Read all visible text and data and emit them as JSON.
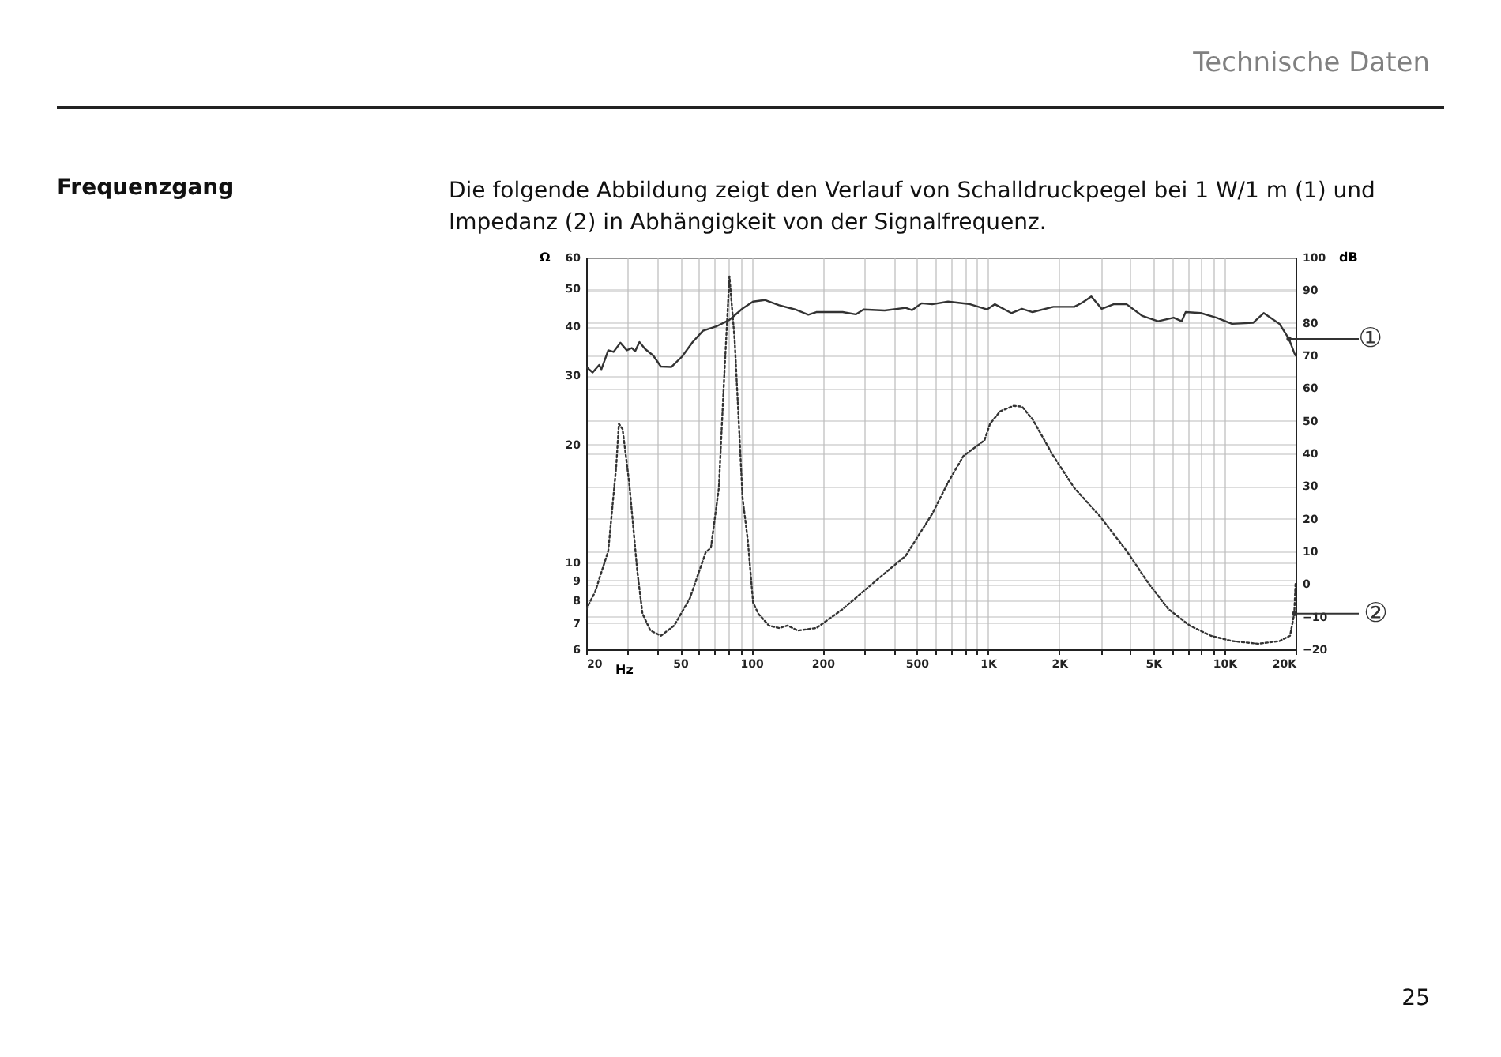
{
  "chart_data": {
    "type": "line",
    "title": "Frequenzgang",
    "subtitle": "Die folgende Abbildung zeigt den Verlauf von Schalldruckpegel bei 1 W/1 m (1) und Impedanz (2) in Abhängigkeit von der Signalfrequenz.",
    "xlabel": "Hz",
    "ylabel": "Ω",
    "y2label": "dB",
    "annotations": [
      "Technische Daten",
      "25",
      {
        "text": "②",
        "x": 19740,
        "y": 7.4
      },
      {
        "text": "①",
        "x": 18740,
        "y": 37.2
      }
    ],
    "log": "xy",
    "grid": true,
    "xlim": [
      20,
      20000
    ],
    "xticks": [
      20,
      {
        "value": 30,
        "label": null
      },
      {
        "value": 40,
        "label": null
      },
      50,
      {
        "value": 60,
        "label": null
      },
      {
        "value": 70,
        "label": null
      },
      {
        "value": 80,
        "label": null
      },
      {
        "value": 90,
        "label": null
      },
      100,
      200,
      {
        "value": 300,
        "label": null
      },
      {
        "value": 400,
        "label": null
      },
      500,
      {
        "value": 600,
        "label": null
      },
      {
        "value": 700,
        "label": null
      },
      {
        "value": 800,
        "label": null
      },
      {
        "value": 900,
        "label": null
      },
      {
        "value": 1000,
        "label": "1K"
      },
      {
        "value": 2000,
        "label": "2K"
      },
      {
        "value": 3000,
        "label": null
      },
      {
        "value": 4000,
        "label": null
      },
      {
        "value": 5000,
        "label": "5K"
      },
      {
        "value": 6000,
        "label": null
      },
      {
        "value": 7000,
        "label": null
      },
      {
        "value": 8000,
        "label": null
      },
      {
        "value": 9000,
        "label": null
      },
      {
        "value": 10000,
        "label": "10K"
      },
      {
        "value": 20000,
        "label": "20K"
      }
    ],
    "ylim": [
      6,
      60
    ],
    "yticks": [
      6,
      7,
      8,
      9,
      10,
      20,
      30,
      40,
      50,
      60
    ],
    "y2lim": [
      -20,
      100
    ],
    "y2ticks": [
      -20,
      -10,
      0,
      10,
      20,
      30,
      40,
      50,
      60,
      70,
      80,
      90,
      100
    ],
    "series": [
      {
        "color": "#333333",
        "line_style": "dotted",
        "x": [
          20,
          21.8,
          24.8,
          26.8,
          27.5,
          28.5,
          30.4,
          32.9,
          34.6,
          37.4,
          41.4,
          47.1,
          54.9,
          64,
          67.4,
          72.8,
          76.7,
          80.7,
          84.9,
          91.7,
          96.5,
          101.6,
          106.9,
          118.5,
          131,
          142,
          157,
          188,
          243,
          330,
          449,
          581,
          678,
          788,
          967,
          1021,
          1126,
          1282,
          1392,
          1544,
          1890,
          2318,
          2980,
          3860,
          4740,
          5800,
          7140,
          8760,
          10760,
          13900,
          17100,
          18950,
          19740,
          20000
        ],
        "values": [
          7.6,
          8.4,
          10.7,
          17.6,
          22.6,
          21.9,
          16,
          9.5,
          7.4,
          6.7,
          6.5,
          6.9,
          8.1,
          10.6,
          10.9,
          15.5,
          29.8,
          53.7,
          37,
          14.6,
          11.4,
          7.9,
          7.4,
          6.9,
          6.8,
          6.9,
          6.7,
          6.8,
          7.6,
          8.9,
          10.4,
          13.3,
          16,
          18.7,
          20.5,
          22.6,
          24.3,
          25.1,
          25,
          23.2,
          18.7,
          15.5,
          13.1,
          10.7,
          8.9,
          7.6,
          6.9,
          6.5,
          6.3,
          6.2,
          6.3,
          6.5,
          7.4,
          8.9
        ]
      },
      {
        "color": "#333333",
        "line_style": "solid",
        "axis": "y2",
        "x": [
          20,
          21.3,
          22.7,
          23.2,
          24.8,
          26.1,
          27.9,
          29.7,
          31.2,
          32.2,
          33.6,
          35.5,
          38.4,
          41.4,
          45.9,
          50.9,
          56.4,
          62.4,
          71,
          80.7,
          91.7,
          101.6,
          113.7,
          131,
          153,
          174,
          188,
          243,
          276,
          298,
          366,
          449,
          478,
          524,
          581,
          678,
          830,
          991,
          1070,
          1256,
          1392,
          1544,
          1890,
          2318,
          2508,
          2736,
          3028,
          3400,
          3860,
          4500,
          5240,
          6100,
          6600,
          6860,
          7940,
          9260,
          10760,
          13220,
          14660,
          17100,
          18740,
          19740,
          20000
        ],
        "values": [
          66.5,
          64.8,
          67.1,
          65.8,
          71.6,
          71.1,
          73.9,
          71.6,
          72.3,
          71.3,
          74.1,
          72,
          70,
          66.6,
          66.5,
          69.7,
          74.1,
          77.6,
          78.9,
          80.9,
          84.4,
          86.5,
          87,
          85.4,
          84.1,
          82.5,
          83.3,
          83.3,
          82.6,
          84.1,
          83.8,
          84.6,
          83.9,
          86,
          85.7,
          86.5,
          85.8,
          84.1,
          85.7,
          83,
          84.3,
          83.3,
          84.9,
          84.9,
          86.2,
          88.1,
          84.3,
          85.7,
          85.7,
          82.1,
          80.5,
          81.6,
          80.5,
          83.3,
          83,
          81.6,
          79.7,
          80,
          83,
          79.7,
          75.1,
          70.8,
          70
        ]
      }
    ]
  }
}
